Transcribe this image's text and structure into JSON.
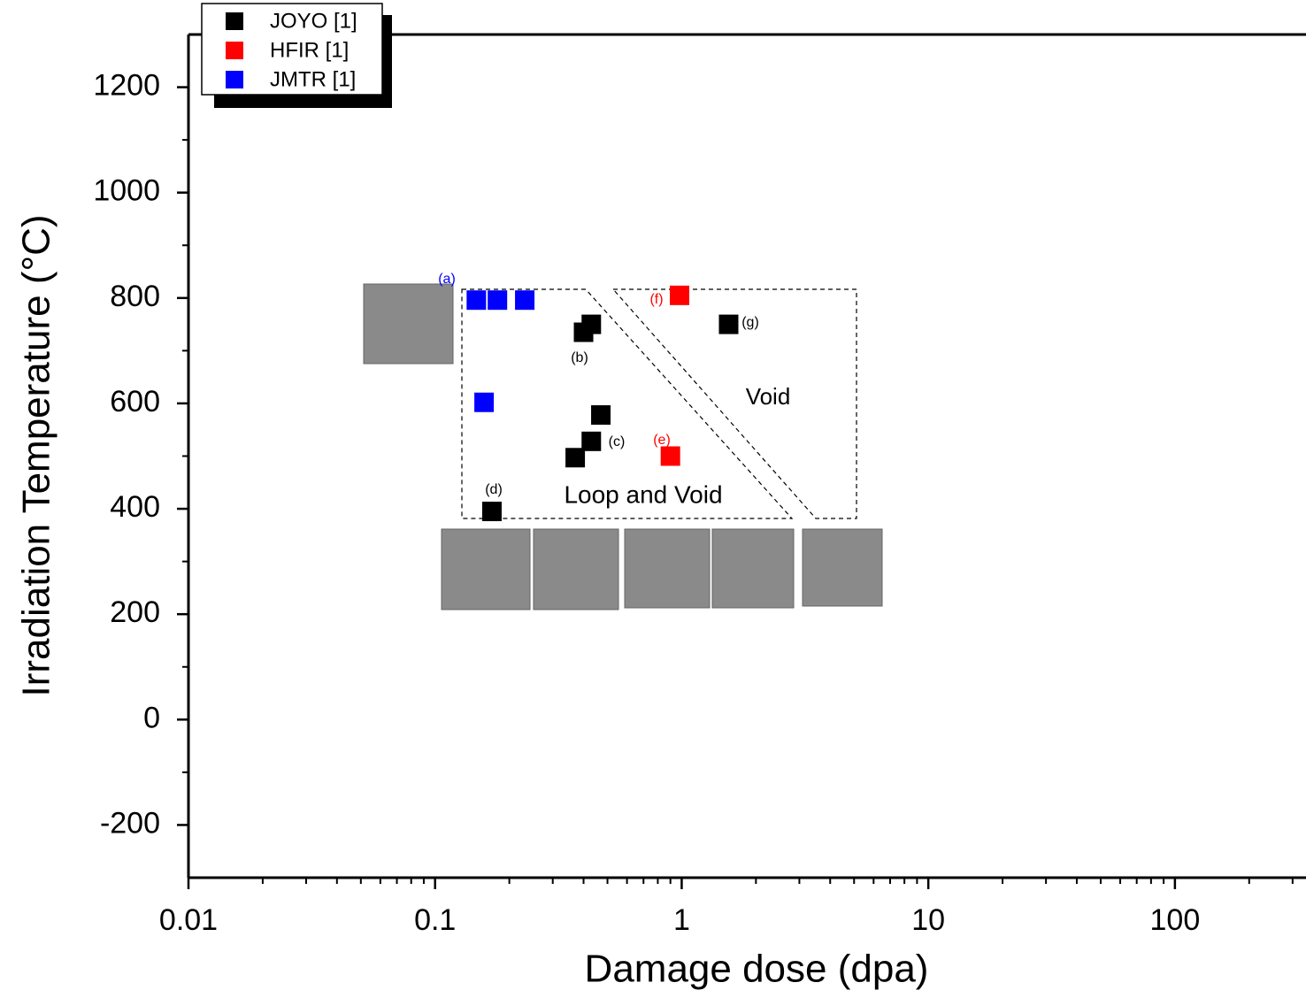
{
  "chart_data": {
    "type": "scatter",
    "xlabel": "Damage dose (dpa)",
    "ylabel": "Irradiation Temperature (°C)",
    "xscale": "log",
    "xlim": [
      0.01,
      340
    ],
    "xticks": [
      0.01,
      0.1,
      1,
      10,
      100
    ],
    "ylim": [
      -300,
      1300
    ],
    "yticks": [
      -200,
      0,
      200,
      400,
      600,
      800,
      1000,
      1200
    ],
    "legend": "upper left",
    "series": [
      {
        "name": "JOYO [1]",
        "color": "#000000",
        "x": [
          0.4,
          0.43,
          1.55,
          0.47,
          0.43,
          0.37,
          0.17
        ],
        "values": [
          735,
          750,
          750,
          578,
          528,
          497,
          395
        ]
      },
      {
        "name": "HFIR [1]",
        "color": "#ff0000",
        "x": [
          0.98,
          0.9
        ],
        "values": [
          805,
          500
        ]
      },
      {
        "name": "JMTR [1]",
        "color": "#0000ff",
        "x": [
          0.147,
          0.179,
          0.231,
          0.158
        ],
        "values": [
          796,
          796,
          796,
          602
        ]
      }
    ],
    "annotations": [
      "(a)",
      "(b)",
      "(c)",
      "(d)",
      "(e)",
      "(f)",
      "(g)",
      "Void",
      "Loop and Void"
    ]
  }
}
